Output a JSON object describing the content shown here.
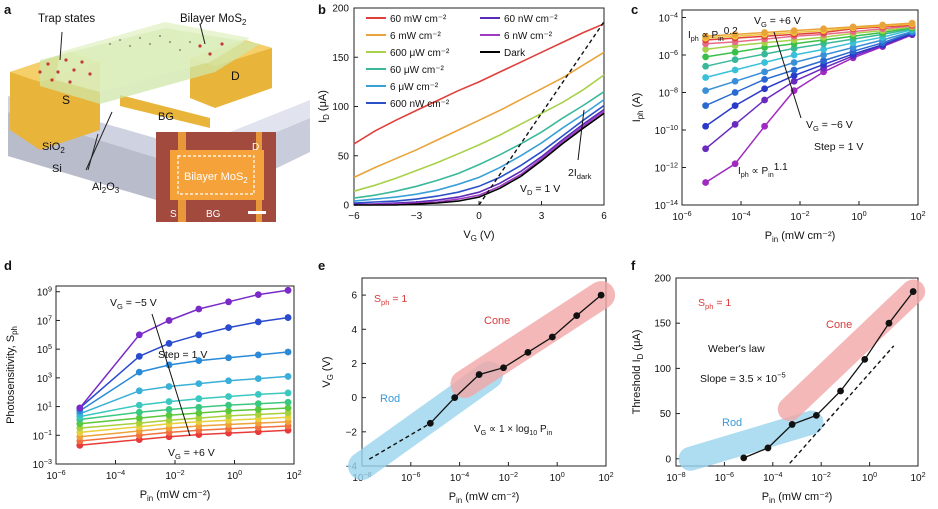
{
  "panel_labels": [
    "a",
    "b",
    "c",
    "d",
    "e",
    "f"
  ],
  "panel_a": {
    "labels": {
      "trap": "Trap states",
      "bilayer": "Bilayer MoS",
      "bilayer_sub": "2",
      "s": "S",
      "d": "D",
      "bg": "BG",
      "sio2": "SiO",
      "sio2_sub": "2",
      "si": "Si",
      "al2o3": "Al",
      "al2o3_sub1": "2",
      "al2o3_mid": "O",
      "al2o3_sub2": "3"
    },
    "inset": {
      "title": "Bilayer MoS",
      "title_sub": "2",
      "d": "D",
      "s": "S",
      "bg": "BG"
    },
    "colors": {
      "gold": "#e8b43a",
      "substrate": "#d8dbe6",
      "chip": "#a24a3e",
      "inset_fill": "#f5a23a"
    }
  },
  "chart_data": [
    {
      "id": "b",
      "type": "line",
      "xlabel": "V",
      "xlabel_sub": "G",
      "xunit": " (V)",
      "ylabel": "I",
      "ylabel_sub": "D",
      "yunit": " (μA)",
      "xlim": [
        -6,
        6
      ],
      "ylim": [
        0,
        200
      ],
      "xticks": [
        -6,
        -3,
        0,
        3,
        6
      ],
      "yticks": [
        0,
        50,
        100,
        150,
        200
      ],
      "x": [
        -6,
        -5,
        -4,
        -3,
        -2,
        -1,
        0,
        1,
        2,
        3,
        4,
        5,
        6
      ],
      "series": [
        {
          "name": "60 mW cm⁻²",
          "color": "#e0403c",
          "values": [
            62,
            75,
            86,
            96,
            106,
            116,
            125,
            135,
            145,
            155,
            165,
            175,
            184
          ]
        },
        {
          "name": "6 mW cm⁻²",
          "color": "#e8a43a",
          "values": [
            28,
            38,
            47,
            56,
            66,
            76,
            86,
            96,
            107,
            118,
            129,
            142,
            155
          ]
        },
        {
          "name": "600 μW cm⁻²",
          "color": "#a8d14a",
          "values": [
            14,
            20,
            27,
            35,
            43,
            52,
            61,
            71,
            82,
            93,
            104,
            117,
            132
          ]
        },
        {
          "name": "60 μW cm⁻²",
          "color": "#3ab89a",
          "values": [
            7,
            10,
            14,
            19,
            25,
            32,
            41,
            51,
            62,
            74,
            88,
            101,
            115
          ]
        },
        {
          "name": "6 μW cm⁻²",
          "color": "#3aa0d8",
          "values": [
            4,
            6,
            8,
            11,
            15,
            21,
            28,
            38,
            50,
            63,
            78,
            92,
            107
          ]
        },
        {
          "name": "600 nW cm⁻²",
          "color": "#2a52c8",
          "values": [
            2,
            3,
            4,
            6,
            9,
            13,
            19,
            28,
            40,
            54,
            70,
            86,
            101
          ]
        },
        {
          "name": "60 nW cm⁻²",
          "color": "#5a2ab8",
          "values": [
            1,
            1,
            2,
            3,
            5,
            8,
            13,
            22,
            34,
            49,
            66,
            82,
            97
          ]
        },
        {
          "name": "6 nW cm⁻²",
          "color": "#a03ac0",
          "values": [
            0,
            1,
            1,
            2,
            3,
            6,
            10,
            19,
            31,
            47,
            64,
            80,
            95
          ]
        },
        {
          "name": "Dark",
          "color": "#000000",
          "values": [
            0,
            0,
            0,
            1,
            2,
            4,
            8,
            17,
            29,
            45,
            62,
            78,
            93
          ]
        }
      ],
      "dashed_line": {
        "x": [
          0,
          6
        ],
        "y": [
          0,
          186
        ]
      },
      "annotations": {
        "twoI": "2I",
        "twoI_sub": "dark",
        "vd": "V",
        "vd_sub": "D",
        "vd_val": " = 1 V"
      }
    },
    {
      "id": "c",
      "type": "line",
      "xlabel": "P",
      "xlabel_sub": "in",
      "xunit": " (mW cm⁻²)",
      "ylabel": "I",
      "ylabel_sub": "ph",
      "yunit": " (A)",
      "log_x": true,
      "log_y": true,
      "xlim_exp": [
        -6,
        2
      ],
      "ylim_exp": [
        -14,
        -3.6
      ],
      "xtick_exps": [
        -6,
        -4,
        -2,
        0,
        2
      ],
      "ytick_exps": [
        -14,
        -12,
        -10,
        -8,
        -6,
        -4
      ],
      "x_exp": [
        -5.2,
        -4.2,
        -3.2,
        -2.2,
        -1.2,
        -0.2,
        0.8,
        1.8
      ],
      "series": [
        {
          "name": "+6 V",
          "color": "#e8a43a",
          "values_exp": [
            -5.0,
            -4.9,
            -4.8,
            -4.7,
            -4.6,
            -4.5,
            -4.4,
            -4.3
          ]
        },
        {
          "name": "+5 V",
          "color": "#f0c43a",
          "values_exp": [
            -5.1,
            -5.0,
            -4.9,
            -4.8,
            -4.7,
            -4.55,
            -4.45,
            -4.35
          ]
        },
        {
          "name": "+4 V",
          "color": "#e0403c",
          "values_exp": [
            -5.2,
            -5.1,
            -5.0,
            -4.9,
            -4.8,
            -4.6,
            -4.5,
            -4.4
          ]
        },
        {
          "name": "+3 V",
          "color": "#e86a8a",
          "values_exp": [
            -5.4,
            -5.3,
            -5.15,
            -5.0,
            -4.9,
            -4.75,
            -4.6,
            -4.45
          ]
        },
        {
          "name": "+2 V",
          "color": "#a8d14a",
          "values_exp": [
            -5.7,
            -5.5,
            -5.35,
            -5.2,
            -5.05,
            -4.85,
            -4.7,
            -4.5
          ]
        },
        {
          "name": "+1 V",
          "color": "#3ac04a",
          "values_exp": [
            -6.1,
            -5.85,
            -5.6,
            -5.4,
            -5.2,
            -5.0,
            -4.8,
            -4.55
          ]
        },
        {
          "name": "0 V",
          "color": "#3ab89a",
          "values_exp": [
            -6.6,
            -6.25,
            -5.95,
            -5.65,
            -5.4,
            -5.15,
            -4.9,
            -4.6
          ]
        },
        {
          "name": "-1 V",
          "color": "#3ac0d8",
          "values_exp": [
            -7.2,
            -6.8,
            -6.4,
            -6.0,
            -5.7,
            -5.35,
            -5.05,
            -4.65
          ]
        },
        {
          "name": "-2 V",
          "color": "#3a90d8",
          "values_exp": [
            -7.9,
            -7.4,
            -6.9,
            -6.4,
            -6.0,
            -5.6,
            -5.2,
            -4.75
          ]
        },
        {
          "name": "-3 V",
          "color": "#2a6ad0",
          "values_exp": [
            -8.7,
            -8.0,
            -7.3,
            -6.8,
            -6.3,
            -5.8,
            -5.35,
            -4.8
          ]
        },
        {
          "name": "-4 V",
          "color": "#2a3ac8",
          "values_exp": [
            -9.8,
            -8.7,
            -7.8,
            -7.1,
            -6.5,
            -5.95,
            -5.45,
            -4.85
          ]
        },
        {
          "name": "-5 V",
          "color": "#6a2ac0",
          "values_exp": [
            -11.0,
            -9.7,
            -8.4,
            -7.4,
            -6.7,
            -6.05,
            -5.5,
            -4.9
          ]
        },
        {
          "name": "-6 V",
          "color": "#a02ac0",
          "values_exp": [
            -12.8,
            -11.8,
            -9.8,
            -7.9,
            -6.9,
            -6.15,
            -5.55,
            -4.92
          ]
        }
      ],
      "annotations": {
        "vg_pos": " = +6 V",
        "vg_neg": " = −6 V",
        "vg": "V",
        "vg_sub": "G",
        "step": "Step = 1 V",
        "law_top": "I",
        "law_top_sub": "ph",
        "law_top_rel": " ∝ P",
        "law_top_sub2": "in",
        "law_top_exp": "0.2",
        "law_bot_exp": "1.1"
      }
    },
    {
      "id": "d",
      "type": "line",
      "xlabel": "P",
      "xlabel_sub": "in",
      "xunit": " (mW cm⁻²)",
      "ylabel": "Photosensitivity, S",
      "ylabel_sub": "ph",
      "log_x": true,
      "log_y": true,
      "xlim_exp": [
        -6,
        2
      ],
      "ylim_exp": [
        -3,
        9.4
      ],
      "xtick_exps": [
        -6,
        -4,
        -2,
        0,
        2
      ],
      "ytick_exps": [
        -3,
        -1,
        1,
        3,
        5,
        7,
        9
      ],
      "x_exp": [
        -5.2,
        -3.2,
        -2.2,
        -1.2,
        -0.2,
        0.8,
        1.8
      ],
      "series": [
        {
          "name": "-5 V",
          "color": "#7a2ac8",
          "values_exp": [
            0.9,
            6.0,
            7.0,
            7.8,
            8.3,
            8.8,
            9.1
          ]
        },
        {
          "name": "-4 V",
          "color": "#2a4ad0",
          "values_exp": [
            0.9,
            4.5,
            5.4,
            6.0,
            6.5,
            6.9,
            7.2
          ]
        },
        {
          "name": "-3 V",
          "color": "#2a8ad8",
          "values_exp": [
            0.7,
            3.4,
            3.9,
            4.2,
            4.4,
            4.6,
            4.8
          ]
        },
        {
          "name": "-2 V",
          "color": "#3ab0d8",
          "values_exp": [
            0.5,
            2.1,
            2.4,
            2.6,
            2.8,
            2.95,
            3.1
          ]
        },
        {
          "name": "-1 V",
          "color": "#3ac8c0",
          "values_exp": [
            0.3,
            1.1,
            1.35,
            1.55,
            1.7,
            1.85,
            1.95
          ]
        },
        {
          "name": "0 V",
          "color": "#3ac880",
          "values_exp": [
            0.1,
            0.6,
            0.8,
            0.95,
            1.1,
            1.2,
            1.3
          ]
        },
        {
          "name": "+1 V",
          "color": "#5ac83a",
          "values_exp": [
            -0.2,
            0.2,
            0.4,
            0.55,
            0.7,
            0.8,
            0.9
          ]
        },
        {
          "name": "+2 V",
          "color": "#a8d03a",
          "values_exp": [
            -0.5,
            -0.15,
            0.05,
            0.2,
            0.35,
            0.45,
            0.55
          ]
        },
        {
          "name": "+3 V",
          "color": "#e8d03a",
          "values_exp": [
            -0.8,
            -0.4,
            -0.2,
            -0.05,
            0.05,
            0.15,
            0.25
          ]
        },
        {
          "name": "+4 V",
          "color": "#f0a03a",
          "values_exp": [
            -1.1,
            -0.7,
            -0.5,
            -0.35,
            -0.25,
            -0.15,
            -0.05
          ]
        },
        {
          "name": "+5 V",
          "color": "#f07040",
          "values_exp": [
            -1.4,
            -1.0,
            -0.8,
            -0.65,
            -0.55,
            -0.45,
            -0.35
          ]
        },
        {
          "name": "+6 V",
          "color": "#e83a3a",
          "values_exp": [
            -1.7,
            -1.3,
            -1.1,
            -0.95,
            -0.85,
            -0.75,
            -0.65
          ]
        }
      ],
      "annotations": {
        "vg": "V",
        "vg_sub": "G",
        "top": " = −5 V",
        "bot": " = +6 V",
        "step": "Step = 1 V"
      }
    },
    {
      "id": "e",
      "type": "line",
      "xlabel": "P",
      "xlabel_sub": "in",
      "xunit": " (mW cm⁻²)",
      "ylabel": "V",
      "ylabel_sub": "G",
      "yunit": " (V)",
      "log_x": true,
      "xlim_exp": [
        -8,
        2
      ],
      "ylim": [
        -4,
        7
      ],
      "xtick_exps": [
        -8,
        -6,
        -4,
        -2,
        0,
        2
      ],
      "yticks": [
        -4,
        -2,
        0,
        2,
        4,
        6
      ],
      "x_exp": [
        -5.2,
        -4.2,
        -3.2,
        -2.2,
        -1.2,
        -0.2,
        0.8,
        1.8
      ],
      "values": [
        -1.5,
        0.0,
        1.35,
        1.75,
        2.65,
        3.55,
        4.8,
        6.0
      ],
      "dashed_line": {
        "x_exp": [
          -7.7,
          -5.2
        ],
        "y": [
          -3.6,
          -1.5
        ]
      },
      "bands": [
        {
          "label": "Rod",
          "color": "#9ad4ee",
          "x_exp": [
            -8.0,
            -2.8
          ],
          "y": [
            -4.0,
            1.3
          ]
        },
        {
          "label": "Cone",
          "color": "#f2a7a7",
          "x_exp": [
            -3.8,
            1.8
          ],
          "y": [
            0.8,
            6.0
          ]
        }
      ],
      "annotations": {
        "sph": "S",
        "sph_sub": "ph",
        "sph_val": " = 1",
        "law": "V",
        "law_sub": "G",
        "law_rest": " ∝ 1 × log",
        "law_sub2": "10",
        "law_p": " P",
        "law_p_sub": "in"
      }
    },
    {
      "id": "f",
      "type": "line",
      "xlabel": "P",
      "xlabel_sub": "in",
      "xunit": " (mW cm⁻²)",
      "ylabel": "Threshold I",
      "ylabel_sub": "D",
      "yunit": " (μA)",
      "log_x": true,
      "xlim_exp": [
        -8,
        2
      ],
      "ylim": [
        -8,
        200
      ],
      "xtick_exps": [
        -8,
        -6,
        -4,
        -2,
        0,
        2
      ],
      "yticks": [
        0,
        50,
        100,
        150,
        200
      ],
      "x_exp": [
        -5.2,
        -4.2,
        -3.2,
        -2.2,
        -1.2,
        -0.2,
        0.8,
        1.8
      ],
      "values": [
        1,
        12,
        38,
        48,
        75,
        110,
        150,
        185
      ],
      "dashed_line": {
        "x_exp": [
          -3.3,
          1.0
        ],
        "y": [
          -5,
          125
        ]
      },
      "bands": [
        {
          "label": "Rod",
          "color": "#9ad4ee",
          "x_exp": [
            -7.4,
            -2.4
          ],
          "y": [
            0,
            40
          ]
        },
        {
          "label": "Cone",
          "color": "#f2a7a7",
          "x_exp": [
            -3.3,
            1.8
          ],
          "y": [
            55,
            185
          ]
        }
      ],
      "annotations": {
        "sph": "S",
        "sph_sub": "ph",
        "sph_val": " = 1",
        "weber": "Weber's law",
        "slope": "Slope = 3.5 × 10",
        "slope_exp": "−5"
      }
    }
  ]
}
